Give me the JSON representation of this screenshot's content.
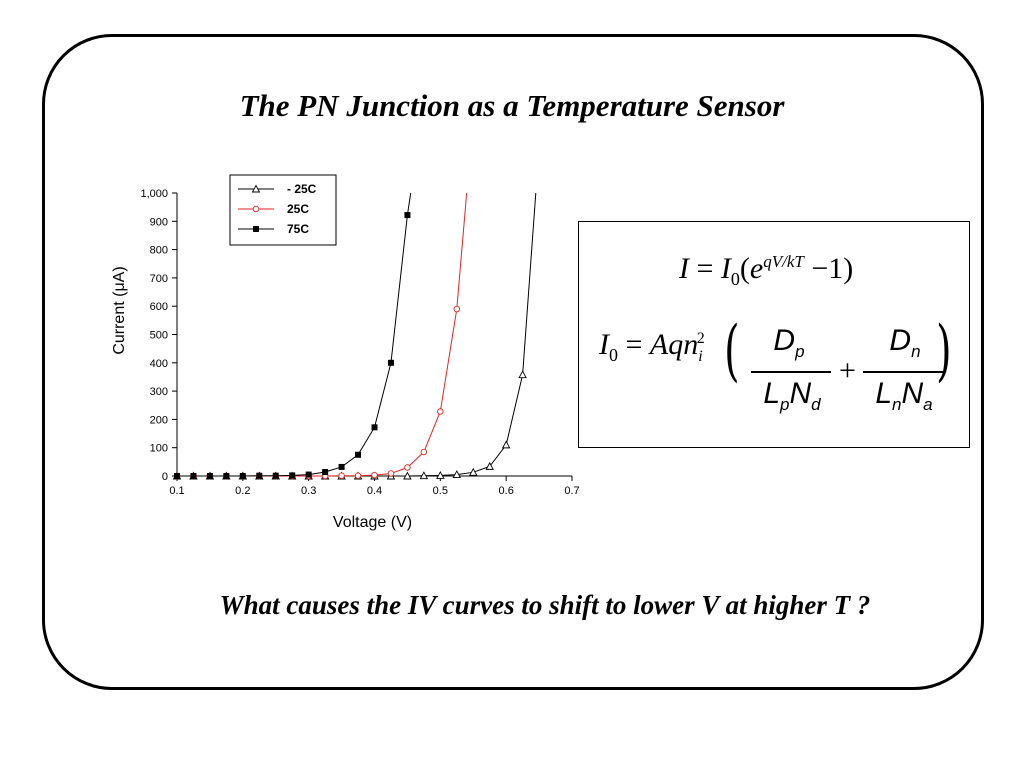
{
  "slide": {
    "title": "The PN Junction as a Temperature Sensor",
    "question": "What causes the IV curves to shift to lower V at higher T ?"
  },
  "equations": {
    "eq1": {
      "lhs": "I",
      "rhs_i0": "I",
      "i0_sub": "0",
      "base": "e",
      "exponent": "qV/kT",
      "minus_one": "−1"
    },
    "eq2": {
      "lhs": "I",
      "lhs_sub": "0",
      "prefix": "Aqn",
      "ni_sub": "i",
      "ni_sup": "2",
      "num1": "D",
      "num1_sub": "p",
      "den1_a": "L",
      "den1_a_sub": "p",
      "den1_b": "N",
      "den1_b_sub": "d",
      "num2": "D",
      "num2_sub": "n",
      "den2_a": "L",
      "den2_a_sub": "n",
      "den2_b": "N",
      "den2_b_sub": "a"
    }
  },
  "chart_data": {
    "type": "line",
    "xlabel": "Voltage (V)",
    "ylabel": "Current (μA)",
    "xlim": [
      0.1,
      0.7
    ],
    "ylim": [
      0,
      1000
    ],
    "xticks": [
      "0.1",
      "0.2",
      "0.3",
      "0.4",
      "0.5",
      "0.6",
      "0.7"
    ],
    "yticks": [
      "0",
      "100",
      "200",
      "300",
      "400",
      "500",
      "600",
      "700",
      "800",
      "900",
      "1,000"
    ],
    "legend_position": "top-left",
    "series": [
      {
        "name": "- 25C",
        "color": "#000000",
        "marker": "triangle-open",
        "x": [
          0.1,
          0.125,
          0.15,
          0.175,
          0.2,
          0.225,
          0.25,
          0.275,
          0.3,
          0.325,
          0.35,
          0.375,
          0.4,
          0.425,
          0.45,
          0.475,
          0.5,
          0.525,
          0.55,
          0.575,
          0.6,
          0.625,
          0.645
        ],
        "y": [
          0,
          0,
          0,
          0,
          0,
          0,
          0,
          0,
          0,
          0,
          0,
          0,
          0,
          0,
          0,
          1,
          2,
          5,
          13,
          34,
          110,
          358,
          1000
        ]
      },
      {
        "name": "25C",
        "color": "#e8231f",
        "marker": "circle-open",
        "x": [
          0.1,
          0.125,
          0.15,
          0.175,
          0.2,
          0.225,
          0.25,
          0.275,
          0.3,
          0.325,
          0.35,
          0.375,
          0.4,
          0.425,
          0.45,
          0.475,
          0.5,
          0.525,
          0.54
        ],
        "y": [
          0,
          0,
          0,
          0,
          0,
          0,
          0,
          0,
          0,
          0,
          1,
          1,
          3,
          9,
          30,
          85,
          228,
          590,
          1000
        ]
      },
      {
        "name": "75C",
        "color": "#000000",
        "marker": "square-filled",
        "x": [
          0.1,
          0.125,
          0.15,
          0.175,
          0.2,
          0.225,
          0.25,
          0.275,
          0.3,
          0.325,
          0.35,
          0.375,
          0.4,
          0.425,
          0.45,
          0.455
        ],
        "y": [
          0,
          0,
          0,
          0,
          0,
          1,
          1,
          2,
          5,
          14,
          32,
          75,
          172,
          400,
          922,
          1000
        ]
      }
    ]
  }
}
